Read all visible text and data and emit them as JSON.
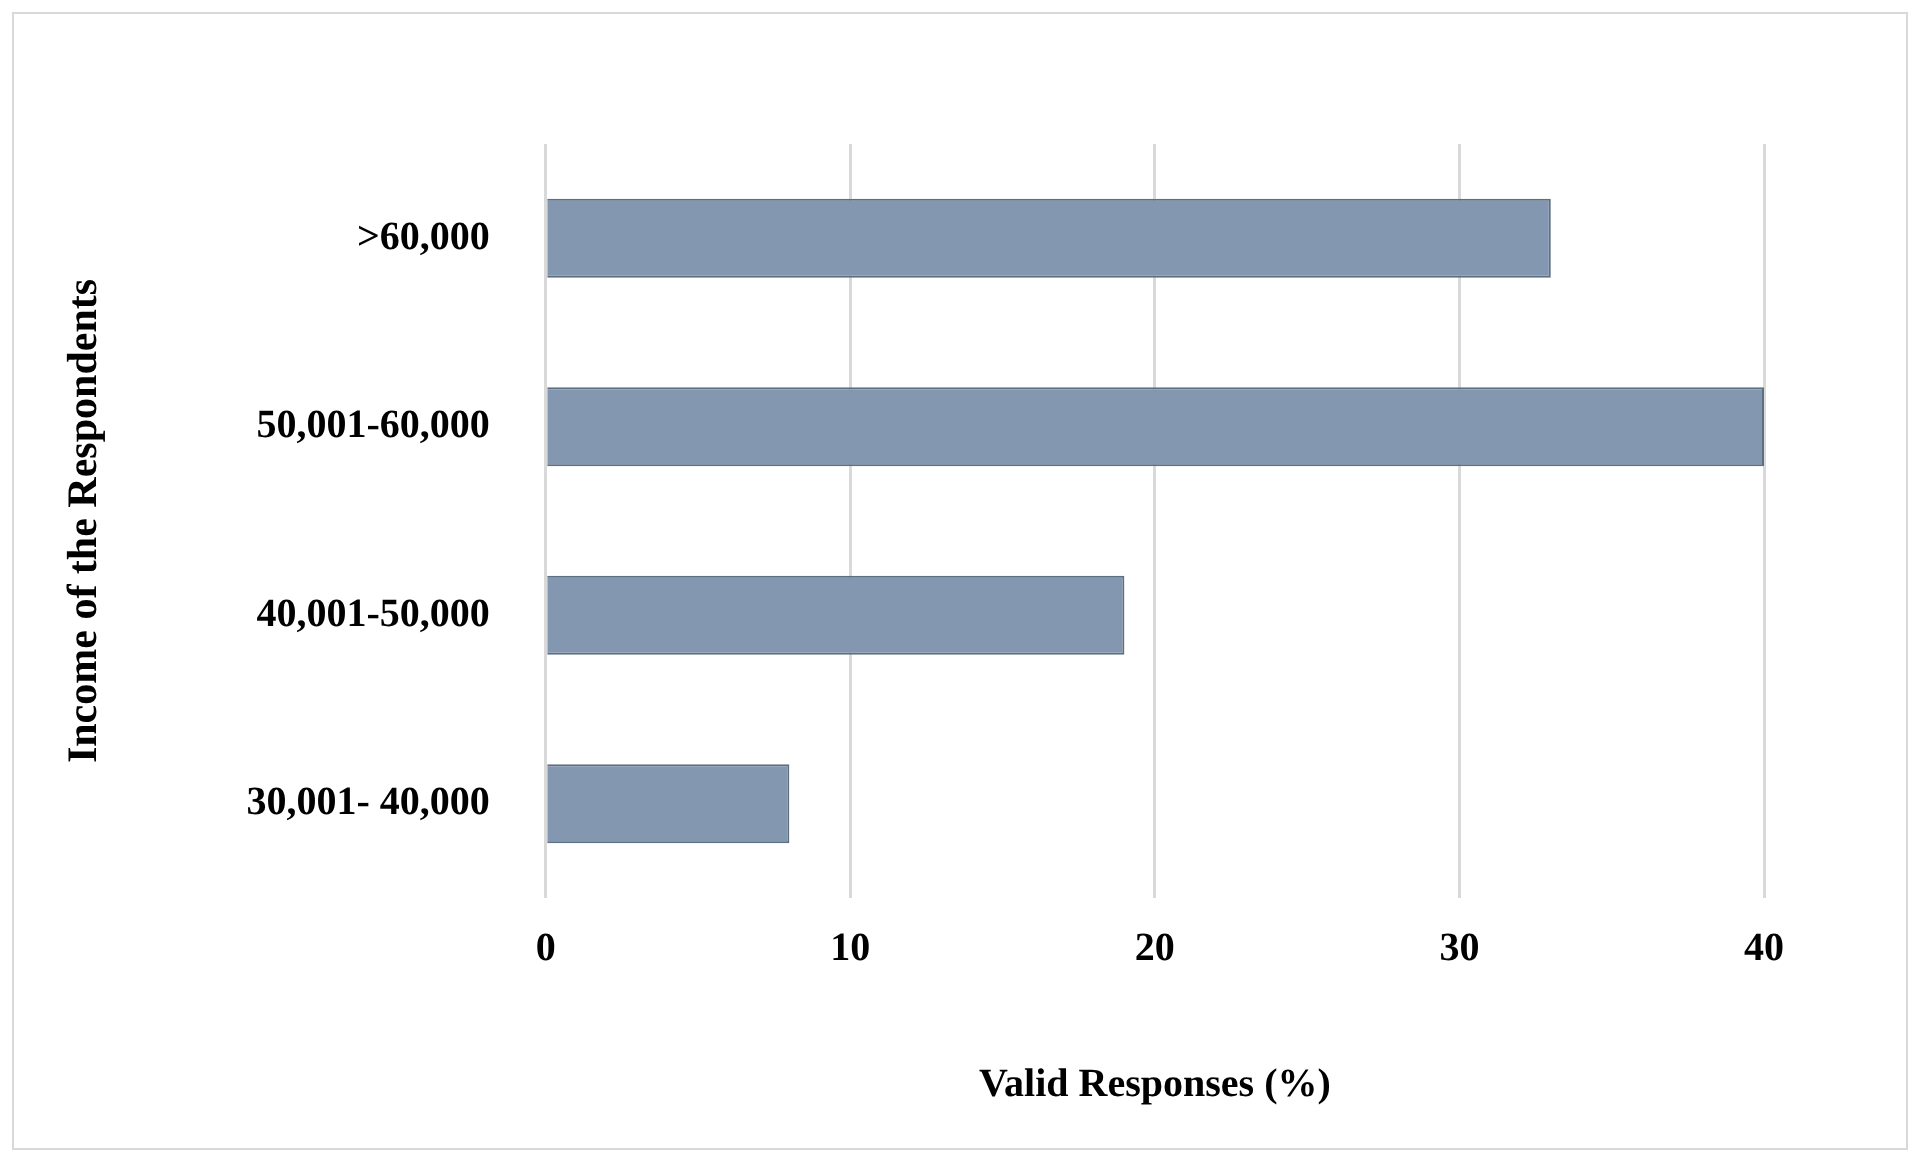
{
  "chart_data": {
    "type": "bar",
    "orientation": "horizontal",
    "xlabel": "Valid Responses (%)",
    "ylabel": "Income of the Respondents",
    "categories": [
      ">60,000",
      "50,001-60,000",
      "40,001-50,000",
      "30,001- 40,000"
    ],
    "values": [
      33,
      40,
      19,
      8
    ],
    "color": "#8497b0",
    "xlim": [
      0,
      40
    ],
    "xticks": [
      0,
      10,
      20,
      30,
      40
    ],
    "grid": "x"
  }
}
